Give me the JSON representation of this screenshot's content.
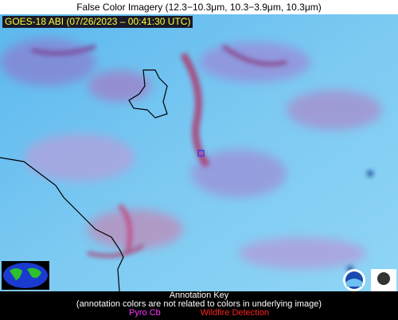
{
  "header": {
    "title": "False Color Imagery (12.3−10.3μm, 10.3−3.9μm, 10.3μm)",
    "timestamp": "GOES-18 ABI (07/26/2023 – 00:41:30 UTC)"
  },
  "annotation_key": {
    "title": "Annotation Key",
    "note": "(annotation colors are not related to colors in underlying image)",
    "items": [
      "Pyro Cb",
      "Wildfire Detection"
    ]
  }
}
